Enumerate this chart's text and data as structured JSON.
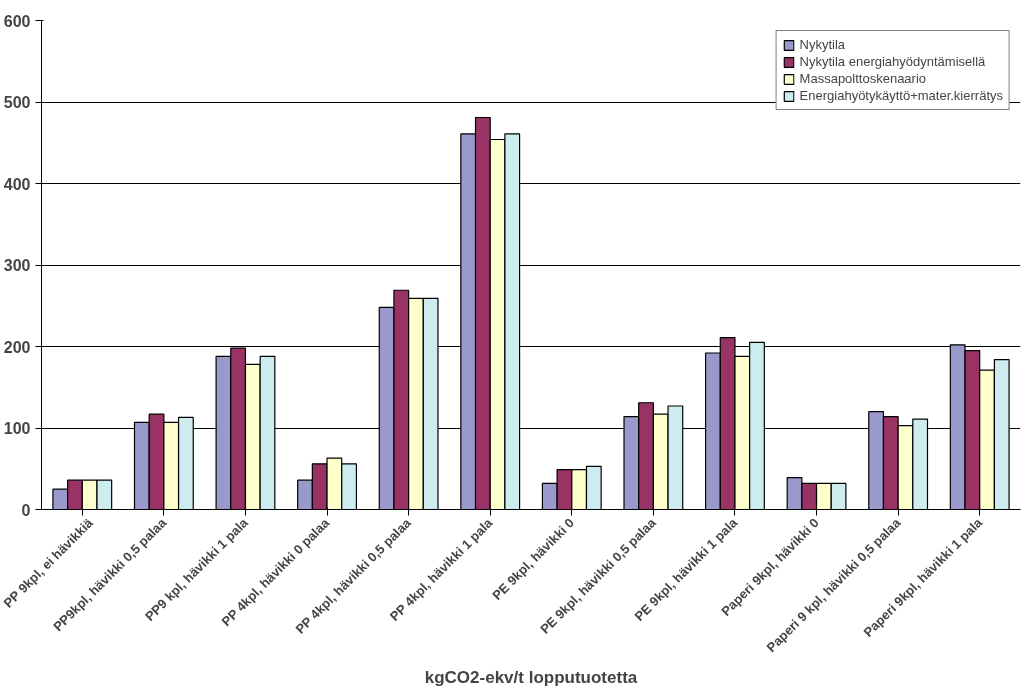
{
  "chart_data": {
    "type": "bar",
    "xlabel": "kgCO2-ekv/t lopputuotetta",
    "categories": [
      "PP 9kpl, ei hävikkiä",
      "PP9kpl, hävikki 0,5 palaa",
      "PP9 kpl, hävikki 1 pala",
      "PP 4kpl, hävikki 0 palaa",
      "PP 4kpl, hävikki 0,5 palaa",
      "PP 4kpl, hävikki 1 pala",
      "PE 9kpl, hävikki 0",
      "PE 9kpl, hävikki 0,5 palaa",
      "PE 9kpl, hävikki 1 pala",
      "Paperi 9kpl, hävikki 0",
      "Paperi 9 kpl, hävikki 0,5 palaa",
      "Paperi 9kpl, hävikki 1 pala"
    ],
    "series": [
      {
        "name": "Nykytila",
        "color": "#9999cc",
        "values": [
          25,
          107,
          188,
          36,
          248,
          461,
          32,
          114,
          192,
          39,
          120,
          202
        ]
      },
      {
        "name": "Nykytila energiahyödyntämisellä",
        "color": "#993366",
        "values": [
          36,
          117,
          198,
          56,
          269,
          481,
          49,
          131,
          211,
          32,
          114,
          195
        ]
      },
      {
        "name": "Massapolttoskenaario",
        "color": "#ffffcc",
        "values": [
          36,
          107,
          178,
          63,
          259,
          454,
          49,
          117,
          188,
          32,
          103,
          171
        ]
      },
      {
        "name": "Energiahyötykäyttö+mater.kierrätys",
        "color": "#ccecf0",
        "values": [
          36,
          113,
          188,
          56,
          259,
          461,
          53,
          127,
          205,
          32,
          111,
          184
        ]
      }
    ],
    "ylim": [
      0,
      600
    ],
    "yticks": [
      0,
      100,
      200,
      300,
      400,
      500,
      600
    ],
    "grid": "y",
    "legend": "top right"
  }
}
